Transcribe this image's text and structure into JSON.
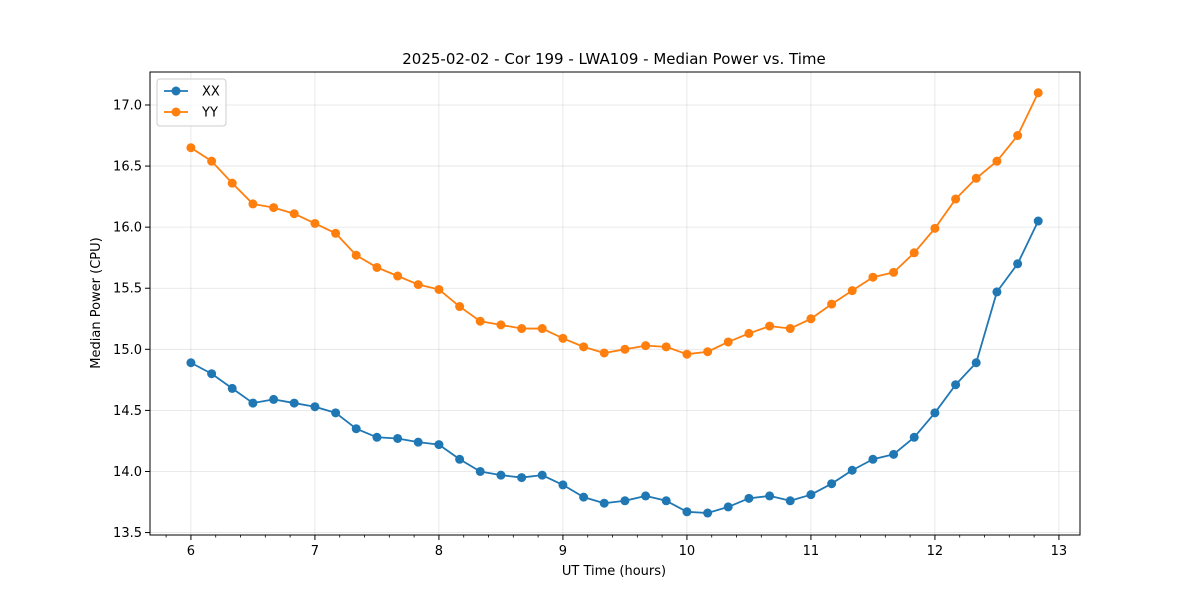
{
  "chart_data": {
    "type": "line",
    "title": "2025-02-02 - Cor 199 - LWA109 - Median Power vs. Time",
    "xlabel": "UT Time (hours)",
    "ylabel": "Median Power (CPU)",
    "xlim": [
      5.67,
      13.17
    ],
    "ylim": [
      13.48,
      17.27
    ],
    "xticks": [
      6,
      7,
      8,
      9,
      10,
      11,
      12,
      13
    ],
    "xtick_labels": [
      "6",
      "7",
      "8",
      "9",
      "10",
      "11",
      "12",
      "13"
    ],
    "yticks": [
      13.5,
      14.0,
      14.5,
      15.0,
      15.5,
      16.0,
      16.5,
      17.0
    ],
    "ytick_labels": [
      "13.5",
      "14.0",
      "14.5",
      "15.0",
      "15.5",
      "16.0",
      "16.5",
      "17.0"
    ],
    "grid": true,
    "legend_position": "top-left",
    "x": [
      6.0,
      6.167,
      6.333,
      6.5,
      6.667,
      6.833,
      7.0,
      7.167,
      7.333,
      7.5,
      7.667,
      7.833,
      8.0,
      8.167,
      8.333,
      8.5,
      8.667,
      8.833,
      9.0,
      9.167,
      9.333,
      9.5,
      9.667,
      9.833,
      10.0,
      10.167,
      10.333,
      10.5,
      10.667,
      10.833,
      11.0,
      11.167,
      11.333,
      11.5,
      11.667,
      11.833,
      12.0,
      12.167,
      12.333,
      12.5,
      12.667,
      12.833
    ],
    "series": [
      {
        "name": "XX",
        "color": "#1f77b4",
        "values": [
          14.89,
          14.8,
          14.68,
          14.56,
          14.59,
          14.56,
          14.53,
          14.48,
          14.35,
          14.28,
          14.27,
          14.24,
          14.22,
          14.1,
          14.0,
          13.97,
          13.95,
          13.97,
          13.89,
          13.79,
          13.74,
          13.76,
          13.8,
          13.76,
          13.67,
          13.66,
          13.71,
          13.78,
          13.8,
          13.76,
          13.81,
          13.9,
          14.01,
          14.1,
          14.14,
          14.28,
          14.48,
          14.71,
          14.89,
          15.47,
          15.7,
          16.05
        ]
      },
      {
        "name": "YY",
        "color": "#ff7f0e",
        "values": [
          16.65,
          16.54,
          16.36,
          16.19,
          16.16,
          16.11,
          16.03,
          15.95,
          15.77,
          15.67,
          15.6,
          15.53,
          15.49,
          15.35,
          15.23,
          15.2,
          15.17,
          15.17,
          15.09,
          15.02,
          14.97,
          15.0,
          15.03,
          15.02,
          14.96,
          14.98,
          15.06,
          15.13,
          15.19,
          15.17,
          15.25,
          15.37,
          15.48,
          15.59,
          15.63,
          15.79,
          15.99,
          16.23,
          16.4,
          16.54,
          16.75,
          17.1
        ]
      }
    ]
  }
}
